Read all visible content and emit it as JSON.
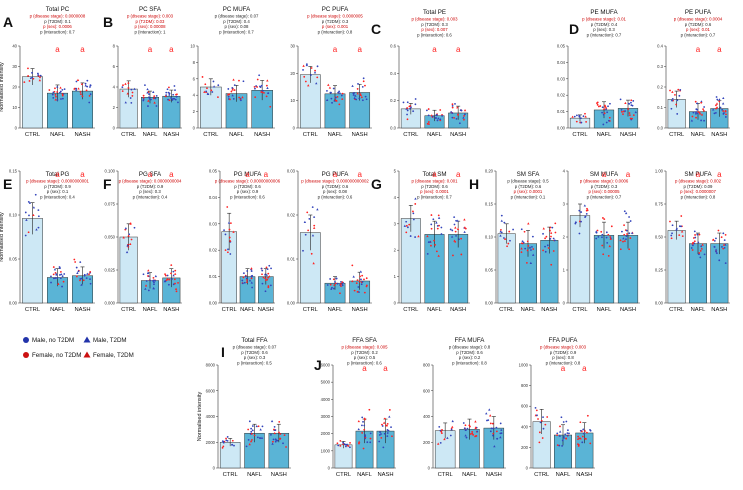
{
  "figure": {
    "ylabel": "Normalised intensity",
    "legend": [
      {
        "label": "Male, no T2DM",
        "color": "#2233aa",
        "marker": "circle"
      },
      {
        "label": "Male, T2DM",
        "color": "#2233aa",
        "marker": "triangle"
      },
      {
        "label": "Female, no T2DM",
        "color": "#cc1111",
        "marker": "circle"
      },
      {
        "label": "Female, T2DM",
        "color": "#cc1111",
        "marker": "triangle"
      }
    ],
    "colors": {
      "ctrl": "#cde8f5",
      "disease": "#5ab4d6",
      "stat_sig": "#cc0000",
      "stat_ns": "#222222",
      "sig_letter": "#ff2222"
    }
  },
  "chart_data": [
    {
      "panel": "A",
      "type": "bar",
      "title": "Total PC",
      "categories": [
        "CTRL",
        "NAFL",
        "NASH"
      ],
      "values": [
        25,
        17,
        18
      ],
      "errors": [
        4,
        4,
        4
      ],
      "sig": [
        "",
        "a",
        "a"
      ],
      "ylim": [
        0,
        40
      ],
      "yticks": [
        "0",
        "10",
        "20",
        "30",
        "40"
      ],
      "stats": [
        {
          "text": "p (disease stage): 0.0000008",
          "sig": true
        },
        {
          "text": "p (T2DM): 0.1",
          "sig": false
        },
        {
          "text": "p (sex): 0.0006",
          "sig": true
        },
        {
          "text": "p (interaction): 0.7",
          "sig": false
        }
      ]
    },
    {
      "panel": "B",
      "type": "bar",
      "title": "PC SFA",
      "categories": [
        "CTRL",
        "NAFL",
        "NASH"
      ],
      "values": [
        3.8,
        3.0,
        3.1
      ],
      "errors": [
        0.8,
        0.6,
        0.6
      ],
      "sig": [
        "",
        "a",
        "a"
      ],
      "ylim": [
        0,
        8
      ],
      "yticks": [
        "0",
        "2",
        "4",
        "6",
        "8"
      ],
      "stats": [
        {
          "text": "p (disease stage): 0.003",
          "sig": true
        },
        {
          "text": "p (T2DM): 0.03",
          "sig": true
        },
        {
          "text": "p (sex): 0.00008",
          "sig": true
        },
        {
          "text": "p (interaction): 1",
          "sig": false
        }
      ]
    },
    {
      "panel": "",
      "type": "bar",
      "title": "PC MUFA",
      "categories": [
        "CTRL",
        "NAFL",
        "NASH"
      ],
      "values": [
        5.0,
        4.2,
        4.6
      ],
      "errors": [
        1.0,
        1.0,
        1.2
      ],
      "sig": [
        "",
        "",
        ""
      ],
      "ylim": [
        0,
        10
      ],
      "yticks": [
        "0",
        "2",
        "4",
        "6",
        "8",
        "10"
      ],
      "stats": [
        {
          "text": "p (disease stage): 0.07",
          "sig": false
        },
        {
          "text": "p (T2DM): 0.4",
          "sig": false
        },
        {
          "text": "p (sex): 0.08",
          "sig": false
        },
        {
          "text": "p (interaction): 0.7",
          "sig": false
        }
      ]
    },
    {
      "panel": "",
      "type": "bar",
      "title": "PC PUFA",
      "categories": [
        "CTRL",
        "NAFL",
        "NASH"
      ],
      "values": [
        19.5,
        12.5,
        13.0
      ],
      "errors": [
        3,
        3,
        3
      ],
      "sig": [
        "",
        "a",
        "a"
      ],
      "ylim": [
        0,
        30
      ],
      "yticks": [
        "0",
        "10",
        "20",
        "30"
      ],
      "stats": [
        {
          "text": "p (disease stage): 0.0000005",
          "sig": true
        },
        {
          "text": "p (T2DM): 0.3",
          "sig": false
        },
        {
          "text": "p (sex): 0.001",
          "sig": true
        },
        {
          "text": "p (interaction): 0.8",
          "sig": false
        }
      ]
    },
    {
      "panel": "C",
      "type": "bar",
      "title": "Total PE",
      "categories": [
        "CTRL",
        "NAFL",
        "NASH"
      ],
      "values": [
        0.14,
        0.09,
        0.11
      ],
      "errors": [
        0.04,
        0.04,
        0.05
      ],
      "sig": [
        "",
        "a",
        "a"
      ],
      "ylim": [
        0,
        0.6
      ],
      "yticks": [
        "0.0",
        "0.2",
        "0.4",
        "0.6"
      ],
      "stats": [
        {
          "text": "p (disease stage): 0.003",
          "sig": true
        },
        {
          "text": "p (T2DM): 0.3",
          "sig": false
        },
        {
          "text": "p (sex): 0.007",
          "sig": true
        },
        {
          "text": "p (interaction): 0.6",
          "sig": false
        }
      ]
    },
    {
      "panel": "D",
      "type": "bar",
      "title": "PE MUFA",
      "categories": [
        "CTRL",
        "NAFL",
        "NASH"
      ],
      "values": [
        0.006,
        0.011,
        0.012
      ],
      "errors": [
        0.002,
        0.005,
        0.005
      ],
      "sig": [
        "",
        "",
        ""
      ],
      "ylim": [
        0,
        0.05
      ],
      "yticks": [
        "0.00",
        "0.01",
        "0.02",
        "0.03",
        "0.04",
        "0.05"
      ],
      "stats": [
        {
          "text": "p (disease stage): 0.01",
          "sig": true
        },
        {
          "text": "p (T2DM): 0.4",
          "sig": false
        },
        {
          "text": "p (sex): 0.3",
          "sig": false
        },
        {
          "text": "p (interaction): 0.7",
          "sig": false
        }
      ]
    },
    {
      "panel": "",
      "type": "bar",
      "title": "PE PUFA",
      "categories": [
        "CTRL",
        "NAFL",
        "NASH"
      ],
      "values": [
        0.14,
        0.08,
        0.095
      ],
      "errors": [
        0.04,
        0.04,
        0.04
      ],
      "sig": [
        "",
        "a",
        "a"
      ],
      "ylim": [
        0,
        0.4
      ],
      "yticks": [
        "0.0",
        "0.1",
        "0.2",
        "0.3",
        "0.4"
      ],
      "stats": [
        {
          "text": "p (disease stage): 0.0004",
          "sig": true
        },
        {
          "text": "p (T2DM): 0.6",
          "sig": false
        },
        {
          "text": "p (sex): 0.01",
          "sig": true
        },
        {
          "text": "p (interaction): 0.7",
          "sig": false
        }
      ]
    },
    {
      "panel": "E",
      "type": "bar",
      "title": "Total PG",
      "categories": [
        "CTRL",
        "NAFL",
        "NASH"
      ],
      "values": [
        0.096,
        0.029,
        0.031
      ],
      "errors": [
        0.018,
        0.01,
        0.01
      ],
      "sig": [
        "",
        "a",
        "a"
      ],
      "ylim": [
        0,
        0.15
      ],
      "yticks": [
        "0.00",
        "0.05",
        "0.10",
        "0.15"
      ],
      "stats": [
        {
          "text": "p (disease stage): 0.0000000001",
          "sig": true
        },
        {
          "text": "p (T2DM): 0.9",
          "sig": false
        },
        {
          "text": "p (sex): 0.1",
          "sig": false
        },
        {
          "text": "p (interaction): 0.4",
          "sig": false
        }
      ]
    },
    {
      "panel": "F",
      "type": "bar",
      "title": "PG SFA",
      "categories": [
        "CTRL",
        "NAFL",
        "NASH"
      ],
      "values": [
        0.05,
        0.017,
        0.019
      ],
      "errors": [
        0.01,
        0.006,
        0.007
      ],
      "sig": [
        "",
        "a",
        "a"
      ],
      "ylim": [
        0,
        0.1
      ],
      "yticks": [
        "0.000",
        "0.025",
        "0.050",
        "0.075",
        "0.100"
      ],
      "stats": [
        {
          "text": "p (disease stage): 0.0000000004",
          "sig": true
        },
        {
          "text": "p (T2DM): 0.9",
          "sig": false
        },
        {
          "text": "p (sex): 0.3",
          "sig": false
        },
        {
          "text": "p (interaction): 0.4",
          "sig": false
        }
      ]
    },
    {
      "panel": "",
      "type": "bar",
      "title": "PG MUFA",
      "categories": [
        "CTRL",
        "NAFL",
        "NASH"
      ],
      "values": [
        0.027,
        0.01,
        0.01
      ],
      "errors": [
        0.007,
        0.003,
        0.003
      ],
      "sig": [
        "",
        "a",
        "a"
      ],
      "ylim": [
        0,
        0.05
      ],
      "yticks": [
        "0.00",
        "0.01",
        "0.02",
        "0.03",
        "0.04",
        "0.05"
      ],
      "stats": [
        {
          "text": "p (disease stage): 0.00000000006",
          "sig": true
        },
        {
          "text": "p (T2DM): 0.6",
          "sig": false
        },
        {
          "text": "p (sex): 0.9",
          "sig": false
        },
        {
          "text": "p (interaction): 0.6",
          "sig": false
        }
      ]
    },
    {
      "panel": "",
      "type": "bar",
      "title": "PG PUFA",
      "categories": [
        "CTRL",
        "NAFL",
        "NASH"
      ],
      "values": [
        0.016,
        0.0045,
        0.005
      ],
      "errors": [
        0.004,
        0.0015,
        0.002
      ],
      "sig": [
        "",
        "a",
        "a"
      ],
      "ylim": [
        0,
        0.03
      ],
      "yticks": [
        "0.00",
        "0.01",
        "0.02",
        "0.03"
      ],
      "stats": [
        {
          "text": "p (disease stage): 0.000000000002",
          "sig": true
        },
        {
          "text": "p (T2DM): 0.6",
          "sig": false
        },
        {
          "text": "p (sex): 0.08",
          "sig": false
        },
        {
          "text": "p (interaction): 0.6",
          "sig": false
        }
      ]
    },
    {
      "panel": "G",
      "type": "bar",
      "title": "Total SM",
      "categories": [
        "CTRL",
        "NAFL",
        "NASH"
      ],
      "values": [
        3.2,
        2.6,
        2.6
      ],
      "errors": [
        0.5,
        0.5,
        0.5
      ],
      "sig": [
        "",
        "a",
        "a"
      ],
      "ylim": [
        0,
        5
      ],
      "yticks": [
        "0",
        "1",
        "2",
        "3",
        "4",
        "5"
      ],
      "stats": [
        {
          "text": "p (disease stage): 0.001",
          "sig": true
        },
        {
          "text": "p (T2DM): 0.6",
          "sig": false
        },
        {
          "text": "p (sex): 0.0001",
          "sig": true
        },
        {
          "text": "p (interaction): 0.7",
          "sig": false
        }
      ]
    },
    {
      "panel": "H",
      "type": "bar",
      "title": "SM SFA",
      "categories": [
        "CTRL",
        "NAFL",
        "NASH"
      ],
      "values": [
        0.105,
        0.09,
        0.095
      ],
      "errors": [
        0.015,
        0.02,
        0.02
      ],
      "sig": [
        "",
        "",
        ""
      ],
      "ylim": [
        0,
        0.2
      ],
      "yticks": [
        "0.00",
        "0.05",
        "0.10",
        "0.15",
        "0.20"
      ],
      "stats": [
        {
          "text": "p (disease stage): 0.5",
          "sig": false
        },
        {
          "text": "p (T2DM): 0.6",
          "sig": false
        },
        {
          "text": "p (sex): 0.0001",
          "sig": true
        },
        {
          "text": "p (interaction): 0.1",
          "sig": false
        }
      ]
    },
    {
      "panel": "",
      "type": "bar",
      "title": "SM MUFA",
      "categories": [
        "CTRL",
        "NAFL",
        "NASH"
      ],
      "values": [
        2.65,
        2.05,
        2.05
      ],
      "errors": [
        0.35,
        0.4,
        0.4
      ],
      "sig": [
        "",
        "a",
        "a"
      ],
      "ylim": [
        0,
        4
      ],
      "yticks": [
        "0",
        "1",
        "2",
        "3",
        "4"
      ],
      "stats": [
        {
          "text": "p (disease stage): 0.0006",
          "sig": true
        },
        {
          "text": "p (T2DM): 0.3",
          "sig": false
        },
        {
          "text": "p (sex): 0.00005",
          "sig": true
        },
        {
          "text": "p (interaction): 0.7",
          "sig": false
        }
      ]
    },
    {
      "panel": "",
      "type": "bar",
      "title": "SM PUFA",
      "categories": [
        "CTRL",
        "NAFL",
        "NASH"
      ],
      "values": [
        0.55,
        0.45,
        0.45
      ],
      "errors": [
        0.07,
        0.08,
        0.08
      ],
      "sig": [
        "",
        "a",
        "a"
      ],
      "ylim": [
        0,
        1.0
      ],
      "yticks": [
        "0.00",
        "0.25",
        "0.50",
        "0.75",
        "1.00"
      ],
      "stats": [
        {
          "text": "p (disease stage): 0.002",
          "sig": true
        },
        {
          "text": "p (T2DM): 0.09",
          "sig": false
        },
        {
          "text": "p (sex): 0.0000007",
          "sig": true
        },
        {
          "text": "p (interaction): 0.8",
          "sig": false
        }
      ]
    },
    {
      "panel": "I",
      "type": "bar",
      "title": "Total FFA",
      "categories": [
        "CTRL",
        "NAFL",
        "NASH"
      ],
      "values": [
        2000,
        2700,
        2700
      ],
      "errors": [
        300,
        700,
        700
      ],
      "sig": [
        "",
        "",
        ""
      ],
      "ylim": [
        0,
        8000
      ],
      "yticks": [
        "0",
        "2000",
        "4000",
        "6000",
        "8000"
      ],
      "stats": [
        {
          "text": "p (disease stage): 0.07",
          "sig": false
        },
        {
          "text": "p (T2DM): 0.6",
          "sig": false
        },
        {
          "text": "p (sex): 0.3",
          "sig": false
        },
        {
          "text": "p (interaction): 0.5",
          "sig": false
        }
      ]
    },
    {
      "panel": "J",
      "type": "bar",
      "title": "FFA SFA",
      "categories": [
        "CTRL",
        "NAFL",
        "NASH"
      ],
      "values": [
        1350,
        2150,
        2150
      ],
      "errors": [
        200,
        700,
        700
      ],
      "sig": [
        "",
        "a",
        "a"
      ],
      "ylim": [
        0,
        6000
      ],
      "yticks": [
        "0",
        "1000",
        "2000",
        "3000",
        "4000",
        "5000",
        "6000"
      ],
      "stats": [
        {
          "text": "p (disease stage): 0.005",
          "sig": true
        },
        {
          "text": "p (T2DM): 0.2",
          "sig": false
        },
        {
          "text": "p (sex): 0.5",
          "sig": false
        },
        {
          "text": "p (interaction): 0.6",
          "sig": false
        }
      ]
    },
    {
      "panel": "",
      "type": "bar",
      "title": "FFA MUFA",
      "categories": [
        "CTRL",
        "NAFL",
        "NASH"
      ],
      "values": [
        290,
        300,
        310
      ],
      "errors": [
        60,
        80,
        90
      ],
      "sig": [
        "",
        "",
        ""
      ],
      "ylim": [
        0,
        800
      ],
      "yticks": [
        "0",
        "200",
        "400",
        "600",
        "800"
      ],
      "stats": [
        {
          "text": "p (disease stage): 0.8",
          "sig": false
        },
        {
          "text": "p (T2DM): 0.6",
          "sig": false
        },
        {
          "text": "p (sex): 0.2",
          "sig": false
        },
        {
          "text": "p (interaction): 0.8",
          "sig": false
        }
      ]
    },
    {
      "panel": "",
      "type": "bar",
      "title": "FFA PUFA",
      "categories": [
        "CTRL",
        "NAFL",
        "NASH"
      ],
      "values": [
        450,
        320,
        340
      ],
      "errors": [
        120,
        100,
        100
      ],
      "sig": [
        "",
        "a",
        "a"
      ],
      "ylim": [
        0,
        1000
      ],
      "yticks": [
        "0",
        "200",
        "400",
        "600",
        "800",
        "1000"
      ],
      "stats": [
        {
          "text": "p (disease stage): 0.003",
          "sig": true
        },
        {
          "text": "p (T2DM): 0.9",
          "sig": false
        },
        {
          "text": "p (sex): 0.8",
          "sig": false
        },
        {
          "text": "p (interaction): 0.8",
          "sig": false
        }
      ]
    }
  ]
}
